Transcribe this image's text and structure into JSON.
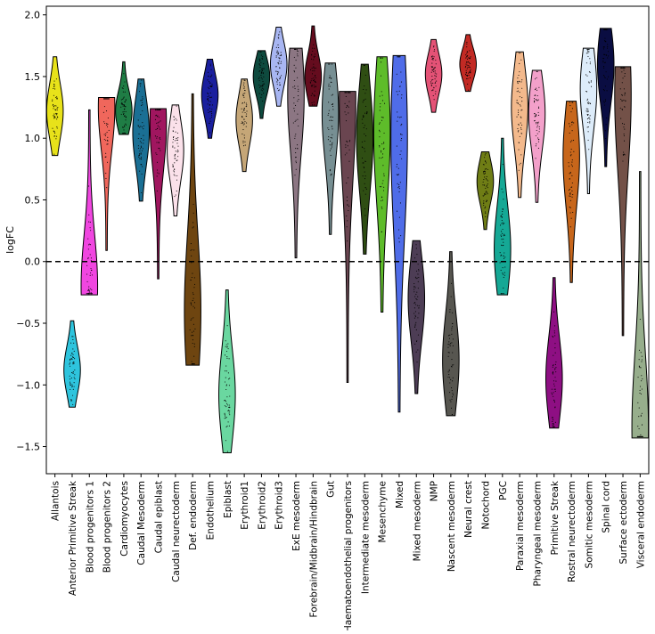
{
  "chart_data": {
    "type": "violin",
    "title": "",
    "xlabel": "",
    "ylabel": "logFC",
    "ylim": [
      -1.72,
      2.07
    ],
    "yticks": [
      -1.5,
      -1.0,
      -0.5,
      0.0,
      0.5,
      1.0,
      1.5,
      2.0
    ],
    "ytick_labels": [
      "−1.5",
      "−1.0",
      "−0.5",
      "0.0",
      "0.5",
      "1.0",
      "1.5",
      "2.0"
    ],
    "reference_line": {
      "y": 0.0,
      "style": "dashed",
      "color": "#000000"
    },
    "grid": false,
    "legend": "none",
    "categories": [
      {
        "name": "Allantois",
        "color": "#e8e21a",
        "min": 0.86,
        "max": 1.66,
        "mode": 1.22
      },
      {
        "name": "Anterior Primitive Streak",
        "color": "#2ec4dd",
        "min": -1.18,
        "max": -0.48,
        "mode": -0.88
      },
      {
        "name": "Blood progenitors 1",
        "color": "#f046e0",
        "min": -0.27,
        "max": 1.23,
        "mode": -0.2
      },
      {
        "name": "Blood progenitors 2",
        "color": "#f0675c",
        "min": 0.09,
        "max": 1.33,
        "mode": 1.25
      },
      {
        "name": "Cardiomyocytes",
        "color": "#1f7d45",
        "min": 1.03,
        "max": 1.62,
        "mode": 1.22
      },
      {
        "name": "Caudal Mesoderm",
        "color": "#1a6f94",
        "min": 0.49,
        "max": 1.48,
        "mode": 1.05
      },
      {
        "name": "Caudal epiblast",
        "color": "#a0165f",
        "min": -0.14,
        "max": 1.24,
        "mode": 1.12
      },
      {
        "name": "Caudal neurectoderm",
        "color": "#fbe1ea",
        "min": 0.37,
        "max": 1.27,
        "mode": 0.9
      },
      {
        "name": "Def. endoderm",
        "color": "#6e4510",
        "min": -0.84,
        "max": 1.36,
        "mode": -0.4
      },
      {
        "name": "Endothelium",
        "color": "#1a1f9e",
        "min": 1.0,
        "max": 1.64,
        "mode": 1.35
      },
      {
        "name": "Epiblast",
        "color": "#6ad7a0",
        "min": -1.55,
        "max": -0.23,
        "mode": -1.08
      },
      {
        "name": "Erythroid1",
        "color": "#c5a677",
        "min": 0.73,
        "max": 1.48,
        "mode": 1.15
      },
      {
        "name": "Erythroid2",
        "color": "#0e4a3e",
        "min": 1.16,
        "max": 1.71,
        "mode": 1.5
      },
      {
        "name": "Erythroid3",
        "color": "#a8b6f2",
        "min": 1.26,
        "max": 1.9,
        "mode": 1.6
      },
      {
        "name": "ExE mesoderm",
        "color": "#8c7683",
        "min": 0.03,
        "max": 1.73,
        "mode": 1.35
      },
      {
        "name": "Forebrain/Midbrain/Hindbrain",
        "color": "#650c1e",
        "min": 1.26,
        "max": 1.91,
        "mode": 1.5
      },
      {
        "name": "Gut",
        "color": "#778f93",
        "min": 0.22,
        "max": 1.61,
        "mode": 1.2
      },
      {
        "name": "Haematoendothelial progenitors",
        "color": "#6a4550",
        "min": -0.98,
        "max": 1.38,
        "mode": 1.3
      },
      {
        "name": "Intermediate mesoderm",
        "color": "#2f4e13",
        "min": 0.06,
        "max": 1.6,
        "mode": 1.0
      },
      {
        "name": "Mesenchyme",
        "color": "#5ebc2a",
        "min": -0.41,
        "max": 1.66,
        "mode": 1.05
      },
      {
        "name": "Mixed",
        "color": "#4f6ce8",
        "min": -1.22,
        "max": 1.67,
        "mode": 1.0
      },
      {
        "name": "Mixed mesoderm",
        "color": "#4d3d55",
        "min": -1.07,
        "max": 0.17,
        "mode": -0.3
      },
      {
        "name": "NMP",
        "color": "#e45276",
        "min": 1.21,
        "max": 1.8,
        "mode": 1.52
      },
      {
        "name": "Nascent mesoderm",
        "color": "#575650",
        "min": -1.25,
        "max": 0.08,
        "mode": -0.8
      },
      {
        "name": "Neural crest",
        "color": "#c22a24",
        "min": 1.38,
        "max": 1.84,
        "mode": 1.6
      },
      {
        "name": "Notochord",
        "color": "#6f7d15",
        "min": 0.26,
        "max": 0.89,
        "mode": 0.65
      },
      {
        "name": "PGC",
        "color": "#15a895",
        "min": -0.27,
        "max": 1.0,
        "mode": 0.1
      },
      {
        "name": "Paraxial mesoderm",
        "color": "#f3b98c",
        "min": 0.52,
        "max": 1.7,
        "mode": 1.25
      },
      {
        "name": "Pharyngeal mesoderm",
        "color": "#f3a0ca",
        "min": 0.48,
        "max": 1.55,
        "mode": 1.2
      },
      {
        "name": "Primitive Streak",
        "color": "#8e0f83",
        "min": -1.35,
        "max": -0.13,
        "mode": -0.95
      },
      {
        "name": "Rostral neurectoderm",
        "color": "#c7661b",
        "min": -0.17,
        "max": 1.3,
        "mode": 0.85
      },
      {
        "name": "Somitic mesoderm",
        "color": "#ddecfa",
        "min": 0.55,
        "max": 1.73,
        "mode": 1.4
      },
      {
        "name": "Spinal cord",
        "color": "#0a0d42",
        "min": 0.77,
        "max": 1.89,
        "mode": 1.6
      },
      {
        "name": "Surface ectoderm",
        "color": "#735148",
        "min": -0.6,
        "max": 1.58,
        "mode": 1.35
      },
      {
        "name": "Visceral endoderm",
        "color": "#97ae8c",
        "min": -1.43,
        "max": 0.73,
        "mode": -1.35
      }
    ]
  }
}
